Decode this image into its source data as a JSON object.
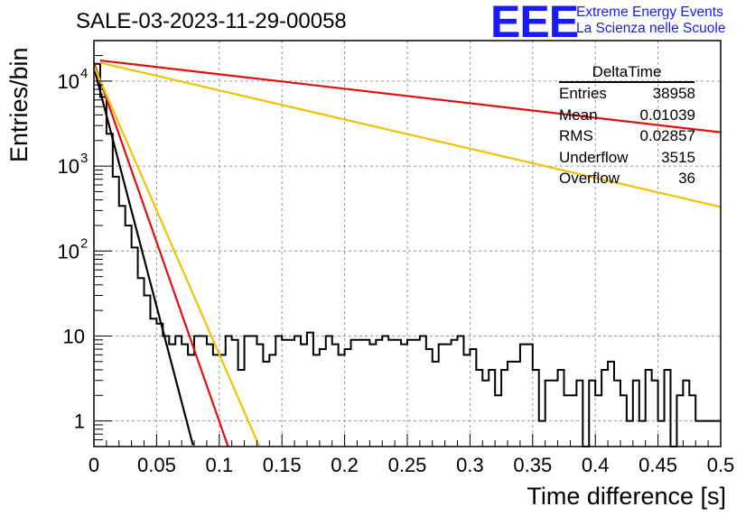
{
  "header": {
    "title": "SALE-03-2023-11-29-00058",
    "logo_letters": "EEE",
    "logo_line1": "Extreme Energy Events",
    "logo_line2": "La Scienza nelle Scuole"
  },
  "stats_box": {
    "name": "DeltaTime",
    "rows": [
      {
        "label": "Entries",
        "value": "38958"
      },
      {
        "label": "Mean",
        "value": "0.01039"
      },
      {
        "label": "RMS",
        "value": "0.02857"
      },
      {
        "label": "Underflow",
        "value": "3515"
      },
      {
        "label": "Overflow",
        "value": "36"
      }
    ]
  },
  "chart_data": {
    "type": "line",
    "xlabel": "Time difference [s]",
    "ylabel": "Entries/bin",
    "xlim": [
      0,
      0.5
    ],
    "ylim": [
      0.5,
      30000
    ],
    "y_scale": "log",
    "grid": true,
    "x_ticks": [
      "0",
      "0.05",
      "0.1",
      "0.15",
      "0.2",
      "0.25",
      "0.3",
      "0.35",
      "0.4",
      "0.45",
      "0.5"
    ],
    "y_ticks": [
      {
        "value": 1,
        "label": "1"
      },
      {
        "value": 10,
        "label": "10"
      },
      {
        "value": 100,
        "label": "10",
        "exp": "2"
      },
      {
        "value": 1000,
        "label": "10",
        "exp": "3"
      },
      {
        "value": 10000,
        "label": "10",
        "exp": "4"
      }
    ],
    "histogram": {
      "color": "#000000",
      "bin_width": 0.005,
      "x_start": 0,
      "values": [
        16000,
        6500,
        2400,
        750,
        340,
        200,
        110,
        48,
        30,
        16,
        14,
        10,
        8,
        10,
        8,
        6,
        10,
        10,
        8,
        6,
        6,
        10,
        9,
        4,
        10,
        10,
        8,
        5,
        6,
        10,
        9,
        9,
        10,
        8,
        11,
        6,
        7,
        10,
        8,
        6,
        7,
        9,
        9,
        9,
        8,
        9,
        10,
        9,
        9,
        8,
        9,
        9,
        10,
        7,
        5,
        8,
        8,
        9,
        10,
        6,
        7,
        4,
        3,
        4,
        2,
        4,
        5,
        5,
        8,
        8,
        4,
        1,
        3,
        3,
        4,
        2,
        2,
        3,
        0.3,
        3,
        2,
        4,
        5,
        3,
        2,
        1,
        3,
        1,
        4,
        3,
        1,
        4,
        0.3,
        2,
        3,
        2,
        1,
        1,
        1,
        1
      ]
    },
    "series": [
      {
        "color": "#000000",
        "x": [
          0.0,
          0.079
        ],
        "y": [
          14500,
          0.52
        ]
      },
      {
        "color": "#e01010",
        "x": [
          0.0,
          0.107
        ],
        "y": [
          16500,
          0.5
        ]
      },
      {
        "color": "#f2c200",
        "x": [
          0.0,
          0.132
        ],
        "y": [
          15000,
          0.5
        ]
      },
      {
        "color": "#e01010",
        "x": [
          0.005,
          0.5
        ],
        "y": [
          17500,
          2500
        ]
      },
      {
        "color": "#f2c200",
        "x": [
          0.005,
          0.5
        ],
        "y": [
          16500,
          330
        ]
      }
    ]
  }
}
